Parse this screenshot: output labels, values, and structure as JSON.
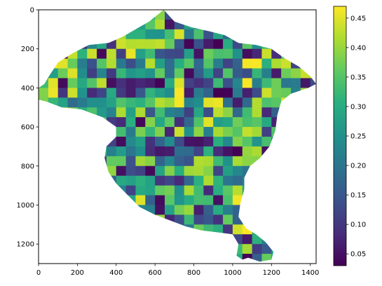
{
  "chart_data": {
    "type": "heatmap",
    "title": "",
    "xlabel": "",
    "ylabel": "",
    "xlim": [
      0,
      1430
    ],
    "ylim": [
      1300,
      0
    ],
    "x_ticks": [
      0,
      200,
      400,
      600,
      800,
      1000,
      1200,
      1400
    ],
    "y_ticks": [
      0,
      200,
      400,
      600,
      800,
      1000,
      1200
    ],
    "colormap": "viridis",
    "colorbar": {
      "range": [
        0.03,
        0.47
      ],
      "ticks": [
        0.05,
        0.1,
        0.15,
        0.2,
        0.25,
        0.3,
        0.35,
        0.4,
        0.45
      ],
      "tick_labels": [
        "0.05",
        "0.10",
        "0.15",
        "0.20",
        "0.25",
        "0.30",
        "0.35",
        "0.40",
        "0.45"
      ]
    },
    "region_outline": [
      [
        645,
        0
      ],
      [
        700,
        60
      ],
      [
        790,
        90
      ],
      [
        880,
        110
      ],
      [
        960,
        130
      ],
      [
        1030,
        170
      ],
      [
        1120,
        180
      ],
      [
        1200,
        200
      ],
      [
        1270,
        250
      ],
      [
        1340,
        290
      ],
      [
        1400,
        340
      ],
      [
        1430,
        380
      ],
      [
        1390,
        400
      ],
      [
        1300,
        430
      ],
      [
        1250,
        470
      ],
      [
        1230,
        540
      ],
      [
        1220,
        620
      ],
      [
        1190,
        700
      ],
      [
        1140,
        760
      ],
      [
        1090,
        800
      ],
      [
        1060,
        860
      ],
      [
        1060,
        920
      ],
      [
        1040,
        990
      ],
      [
        1030,
        1060
      ],
      [
        1070,
        1120
      ],
      [
        1120,
        1150
      ],
      [
        1170,
        1190
      ],
      [
        1210,
        1240
      ],
      [
        1200,
        1280
      ],
      [
        1140,
        1290
      ],
      [
        1080,
        1270
      ],
      [
        1050,
        1280
      ],
      [
        1020,
        1260
      ],
      [
        1030,
        1200
      ],
      [
        1000,
        1150
      ],
      [
        920,
        1140
      ],
      [
        840,
        1130
      ],
      [
        760,
        1110
      ],
      [
        680,
        1080
      ],
      [
        600,
        1050
      ],
      [
        520,
        1010
      ],
      [
        460,
        950
      ],
      [
        400,
        890
      ],
      [
        360,
        830
      ],
      [
        340,
        760
      ],
      [
        350,
        700
      ],
      [
        400,
        650
      ],
      [
        400,
        600
      ],
      [
        330,
        550
      ],
      [
        220,
        510
      ],
      [
        120,
        500
      ],
      [
        40,
        470
      ],
      [
        0,
        460
      ],
      [
        0,
        400
      ],
      [
        30,
        380
      ],
      [
        60,
        330
      ],
      [
        100,
        270
      ],
      [
        180,
        220
      ],
      [
        260,
        180
      ],
      [
        360,
        170
      ],
      [
        430,
        140
      ],
      [
        500,
        100
      ],
      [
        570,
        60
      ]
    ],
    "pixel_values": {
      "rows": 26,
      "cols": 29,
      "cell_size": 50,
      "seed": 7,
      "distribution": "random mixture of values across 0.03 to 0.47"
    }
  }
}
